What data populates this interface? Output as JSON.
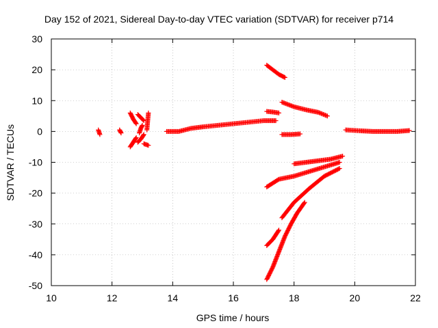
{
  "chart_data": {
    "type": "scatter",
    "title": "Day 152 of 2021, Sidereal Day-to-day VTEC variation (SDTVAR) for receiver p714",
    "xlabel": "GPS time / hours",
    "ylabel": "SDTVAR / TECUs",
    "xlim": [
      10,
      22
    ],
    "ylim": [
      -50,
      30
    ],
    "xticks": [
      10,
      12,
      14,
      16,
      18,
      20,
      22
    ],
    "yticks": [
      -50,
      -40,
      -30,
      -20,
      -10,
      0,
      10,
      20,
      30
    ],
    "grid": true,
    "marker": "+",
    "color": "#ff0000",
    "series": [
      {
        "segments": [
          {
            "x": [
              11.55,
              11.6
            ],
            "y": [
              0.5,
              -1.0
            ]
          },
          {
            "x": [
              12.25,
              12.3
            ],
            "y": [
              0.5,
              -0.5
            ]
          },
          {
            "x": [
              12.6,
              12.7,
              12.8
            ],
            "y": [
              6.0,
              4.0,
              2.5
            ]
          },
          {
            "x": [
              12.6,
              12.7,
              12.8
            ],
            "y": [
              -5.0,
              -3.5,
              -2.0
            ]
          },
          {
            "x": [
              12.85,
              12.95,
              13.05
            ],
            "y": [
              5.5,
              4.5,
              3.5
            ]
          },
          {
            "x": [
              12.85,
              12.95,
              13.05
            ],
            "y": [
              -3.5,
              -2.5,
              -1.0
            ]
          },
          {
            "x": [
              12.9,
              12.95,
              13.0
            ],
            "y": [
              -0.5,
              1.0,
              2.0
            ]
          },
          {
            "x": [
              13.05,
              13.2
            ],
            "y": [
              -4.0,
              -4.5
            ]
          },
          {
            "x": [
              13.15,
              13.2
            ],
            "y": [
              0.5,
              6.0
            ]
          },
          {
            "x": [
              13.8,
              14.2,
              14.6,
              15.0,
              15.5,
              16.0,
              16.5,
              17.0,
              17.4
            ],
            "y": [
              0.0,
              0.0,
              1.0,
              1.5,
              2.0,
              2.5,
              3.0,
              3.5,
              3.5
            ]
          },
          {
            "x": [
              17.1,
              17.3,
              17.5,
              17.7
            ],
            "y": [
              21.5,
              20.0,
              18.5,
              17.5
            ]
          },
          {
            "x": [
              17.1,
              17.3,
              17.5
            ],
            "y": [
              6.5,
              6.3,
              6.0
            ]
          },
          {
            "x": [
              17.6,
              18.0,
              18.4,
              18.8,
              19.1
            ],
            "y": [
              9.5,
              8.0,
              7.0,
              6.2,
              5.0
            ]
          },
          {
            "x": [
              17.6,
              17.9,
              18.2
            ],
            "y": [
              -1.0,
              -1.0,
              -0.8
            ]
          },
          {
            "x": [
              19.7,
              20.2,
              20.6,
              21.0,
              21.4,
              21.8
            ],
            "y": [
              0.5,
              0.2,
              0.0,
              0.0,
              0.0,
              0.3
            ]
          },
          {
            "x": [
              18.0,
              18.4,
              18.8,
              19.2,
              19.6
            ],
            "y": [
              -10.5,
              -10.0,
              -9.5,
              -9.0,
              -8.0
            ]
          },
          {
            "x": [
              17.1,
              17.5,
              18.0,
              18.5,
              19.0,
              19.5
            ],
            "y": [
              -18.0,
              -15.5,
              -14.5,
              -13.0,
              -11.5,
              -10.0
            ]
          },
          {
            "x": [
              17.6,
              18.0,
              18.5,
              19.0,
              19.5
            ],
            "y": [
              -28.0,
              -23.0,
              -18.5,
              -14.5,
              -12.0
            ]
          },
          {
            "x": [
              17.1,
              17.3,
              17.5
            ],
            "y": [
              -37.0,
              -35.0,
              -32.0
            ]
          },
          {
            "x": [
              17.1,
              17.3,
              17.5,
              17.7,
              17.9,
              18.1,
              18.35
            ],
            "y": [
              -48.0,
              -44.0,
              -39.0,
              -34.0,
              -30.0,
              -26.5,
              -23.0
            ]
          }
        ]
      }
    ]
  }
}
